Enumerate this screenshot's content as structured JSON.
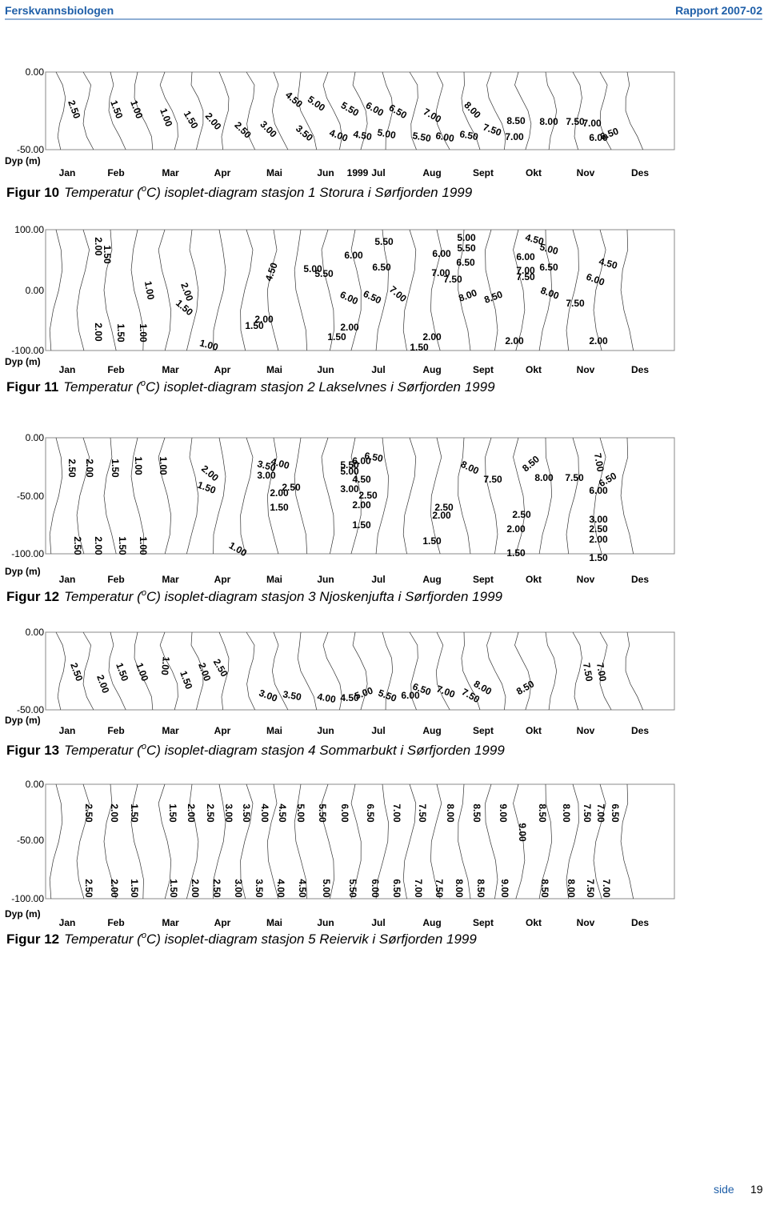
{
  "header": {
    "left": "Ferskvannsbiologen",
    "right": "Rapport 2007-02"
  },
  "figures": [
    {
      "y_labels": [
        "0.00",
        "-50.00"
      ],
      "depth_label": "Dyp (m)",
      "year": "1999",
      "months": [
        "Jan",
        "Feb",
        "Mar",
        "Apr",
        "Mai",
        "Jun",
        "Jul",
        "Aug",
        "Sept",
        "Okt",
        "Nov",
        "Des"
      ],
      "contour_labels": [
        "2.50",
        "1.50",
        "1.00",
        "1.00",
        "1.50",
        "2.00",
        "2.50",
        "3.00",
        "3.50",
        "4.00",
        "4.50",
        "5.00",
        "5.50",
        "6.00",
        "6.50",
        "7.00",
        "7.50",
        "8.00",
        "8.50",
        "8.00",
        "7.50",
        "7.00",
        "6.50",
        "6.00",
        "4.50",
        "5.00",
        "5.50",
        "6.00",
        "6.50",
        "7.00"
      ],
      "caption": {
        "label": "Figur 10",
        "before": "Temperatur (",
        "sup": "o",
        "after": "C) isoplet-diagram stasjon 1 Storura i Sørfjorden 1999"
      }
    },
    {
      "y_labels": [
        "100.00",
        "0.00",
        "-100.00"
      ],
      "depth_label": "Dyp (m)",
      "months": [
        "Jan",
        "Feb",
        "Mar",
        "Apr",
        "Mai",
        "Jun",
        "Jul",
        "Aug",
        "Sept",
        "Okt",
        "Nov",
        "Des"
      ],
      "contour_labels": [
        "2.00",
        "1.50",
        "1.00",
        "2.00",
        "1.50",
        "4.50",
        "5.00",
        "5.50",
        "6.00",
        "5.50",
        "6.50",
        "6.00",
        "5.00",
        "5.50",
        "6.50",
        "7.00",
        "7.50",
        "4.50",
        "5.00",
        "6.00",
        "6.50",
        "7.00",
        "7.50",
        "4.50",
        "6.00",
        "8.00",
        "8.50",
        "8.00",
        "7.50",
        "7.00",
        "6.50",
        "6.00",
        "2.00",
        "1.50",
        "1.00",
        "2.00",
        "1.50",
        "1.00",
        "2.00",
        "1.50",
        "2.00",
        "1.50",
        "2.00",
        "2.00"
      ],
      "caption": {
        "label": "Figur 11",
        "before": "Temperatur (",
        "sup": "o",
        "after": "C) isoplet-diagram stasjon 2 Lakselvnes i Sørfjorden 1999"
      }
    },
    {
      "y_labels": [
        "0.00",
        "-50.00",
        "-100.00"
      ],
      "depth_label": "Dyp (m)",
      "months": [
        "Jan",
        "Feb",
        "Mar",
        "Apr",
        "Mai",
        "Jun",
        "Jul",
        "Aug",
        "Sept",
        "Okt",
        "Nov",
        "Des"
      ],
      "contour_labels": [
        "2.50",
        "2.00",
        "1.50",
        "1.00",
        "1.00",
        "2.00",
        "1.50",
        "4.00",
        "3.50",
        "3.00",
        "2.50",
        "2.00",
        "1.50",
        "6.50",
        "6.00",
        "5.50",
        "5.00",
        "4.50",
        "3.00",
        "2.50",
        "2.00",
        "1.50",
        "8.00",
        "7.50",
        "8.00",
        "8.50",
        "7.50",
        "7.00",
        "6.50",
        "6.00",
        "3.00",
        "2.50",
        "2.00",
        "1.50",
        "2.50",
        "2.00",
        "1.50",
        "2.00",
        "1.50",
        "2.50",
        "1.00",
        "2.50",
        "2.00",
        "1.50",
        "1.00"
      ],
      "caption": {
        "label": "Figur 12",
        "before": "Temperatur (",
        "sup": "o",
        "after": "C) isoplet-diagram stasjon 3 Njoskenjufta i Sørfjorden 1999"
      }
    },
    {
      "y_labels": [
        "0.00",
        "-50.00"
      ],
      "depth_label": "Dyp (m)",
      "months": [
        "Jan",
        "Feb",
        "Mar",
        "Apr",
        "Mai",
        "Jun",
        "Jul",
        "Aug",
        "Sept",
        "Okt",
        "Nov",
        "Des"
      ],
      "contour_labels": [
        "2.50",
        "2.00",
        "1.50",
        "1.00",
        "1.00",
        "1.50",
        "2.00",
        "2.50",
        "3.00",
        "3.50",
        "4.00",
        "4.50",
        "5.00",
        "5.50",
        "6.00",
        "6.50",
        "7.00",
        "7.50",
        "8.00",
        "8.50",
        "7.50",
        "7.00"
      ],
      "caption": {
        "label": "Figur 13",
        "before": "Temperatur (",
        "sup": "o",
        "after": "C) isoplet-diagram stasjon 4 Sommarbukt i Sørfjorden 1999"
      }
    },
    {
      "y_labels": [
        "0.00",
        "-50.00",
        "-100.00"
      ],
      "depth_label": "Dyp (m)",
      "months": [
        "Jan",
        "Feb",
        "Mar",
        "Apr",
        "Mai",
        "Jun",
        "Jul",
        "Aug",
        "Sept",
        "Okt",
        "Nov",
        "Des"
      ],
      "contour_labels": [
        "2.50",
        "2.00",
        "1.50",
        "1.50",
        "2.00",
        "2.50",
        "3.00",
        "3.50",
        "4.00",
        "4.50",
        "5.00",
        "5.50",
        "6.00",
        "6.50",
        "7.00",
        "7.50",
        "8.00",
        "8.50",
        "9.00",
        "9.00",
        "8.50",
        "8.00",
        "7.50",
        "7.00",
        "6.50",
        "2.50",
        "2.00",
        "1.50",
        "1.50",
        "2.00",
        "2.50",
        "3.00",
        "3.50",
        "4.00",
        "4.50",
        "5.00",
        "5.50",
        "6.00",
        "6.50",
        "7.00",
        "7.50",
        "8.00",
        "8.50",
        "9.00",
        "8.50",
        "8.00",
        "7.50",
        "7.00"
      ],
      "caption": {
        "label": "Figur 12",
        "before": "Temperatur (",
        "sup": "o",
        "after": "C) isoplet-diagram stasjon 5 Reiervik i Sørfjorden 1999"
      }
    }
  ],
  "footer": {
    "label": "side",
    "page": "19"
  }
}
